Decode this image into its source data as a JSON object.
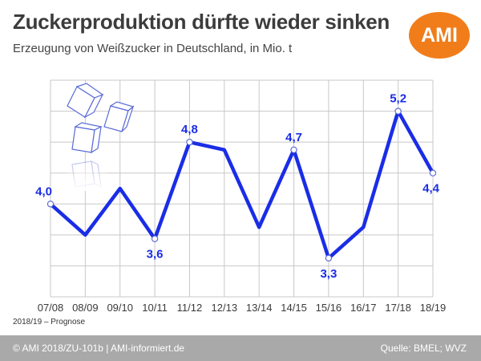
{
  "title": "Zuckerproduktion dürfte wieder sinken",
  "subtitle": "Erzeugung von Weißzucker in Deutschland, in Mio. t",
  "logo": {
    "text": "AMI",
    "color": "#f07d1a"
  },
  "note": "2018/19 – Prognose",
  "footer": {
    "left": "© AMI 2018/ZU-101b | AMI-informiert.de",
    "right": "Quelle: BMEL; WVZ"
  },
  "decoration": {
    "icon": "sugar-cubes-icon"
  },
  "chart_data": {
    "type": "line",
    "title": "Zuckerproduktion dürfte wieder sinken",
    "subtitle": "Erzeugung von Weißzucker in Deutschland, in Mio. t",
    "categories": [
      "07/08",
      "08/09",
      "09/10",
      "10/11",
      "11/12",
      "12/13",
      "13/14",
      "14/15",
      "15/16",
      "16/17",
      "17/18",
      "18/19"
    ],
    "series": [
      {
        "values": [
          4.0,
          3.6,
          4.2,
          3.55,
          4.8,
          4.7,
          3.7,
          4.7,
          3.3,
          3.7,
          5.2,
          4.4
        ],
        "color": "#1a2de6"
      }
    ],
    "labels": [
      {
        "index": 0,
        "text": "4,0",
        "position": "above"
      },
      {
        "index": 3,
        "text": "3,6",
        "position": "below"
      },
      {
        "index": 4,
        "text": "4,8",
        "position": "above"
      },
      {
        "index": 7,
        "text": "4,7",
        "position": "above"
      },
      {
        "index": 8,
        "text": "3,3",
        "position": "below"
      },
      {
        "index": 10,
        "text": "5,2",
        "position": "above"
      },
      {
        "index": 11,
        "text": "4,4",
        "position": "below"
      }
    ],
    "markers_at": [
      0,
      3,
      4,
      7,
      8,
      10,
      11
    ],
    "ylim": [
      2.8,
      5.6
    ],
    "grid": true,
    "y_tick_labels": false,
    "xlabel": "",
    "ylabel": ""
  }
}
